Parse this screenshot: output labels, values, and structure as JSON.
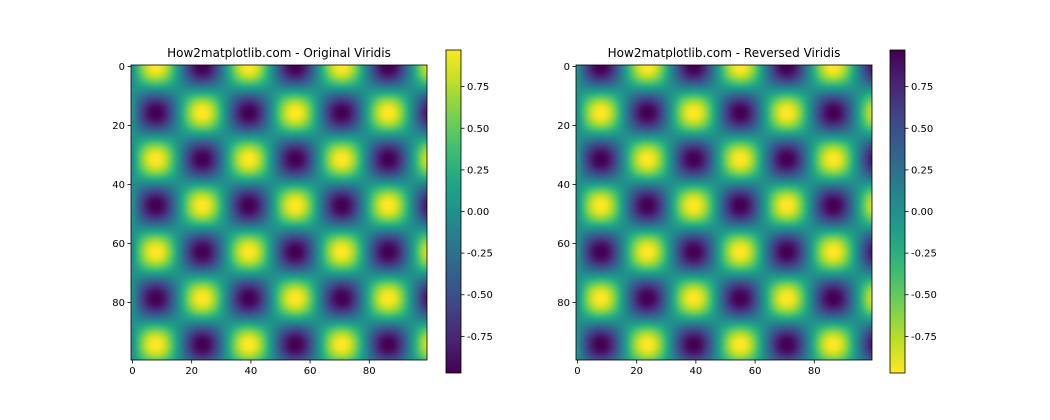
{
  "chart_data": [
    {
      "type": "heatmap",
      "title": "How2matplotlib.com - Original Viridis",
      "function": "sin(x/5)*cos(y/5)",
      "grid_shape": [
        100,
        100
      ],
      "colormap": "viridis",
      "xlim": [
        0,
        99
      ],
      "ylim": [
        99,
        0
      ],
      "xticks": [
        0,
        20,
        40,
        60,
        80
      ],
      "yticks": [
        0,
        20,
        40,
        60,
        80
      ],
      "colorbar": {
        "range": [
          -0.97,
          0.97
        ],
        "ticks": [
          0.75,
          0.5,
          0.25,
          0.0,
          -0.25,
          -0.5,
          -0.75
        ],
        "tick_labels": [
          "0.75",
          "0.50",
          "0.25",
          "0.00",
          "-0.25",
          "-0.50",
          "-0.75"
        ]
      },
      "grid": false
    },
    {
      "type": "heatmap",
      "title": "How2matplotlib.com - Reversed Viridis",
      "function": "sin(x/5)*cos(y/5)",
      "grid_shape": [
        100,
        100
      ],
      "colormap": "viridis_r",
      "xlim": [
        0,
        99
      ],
      "ylim": [
        99,
        0
      ],
      "xticks": [
        0,
        20,
        40,
        60,
        80
      ],
      "yticks": [
        0,
        20,
        40,
        60,
        80
      ],
      "colorbar": {
        "range": [
          -0.97,
          0.97
        ],
        "ticks": [
          0.75,
          0.5,
          0.25,
          0.0,
          -0.25,
          -0.5,
          -0.75
        ],
        "tick_labels": [
          "0.75",
          "0.50",
          "0.25",
          "0.00",
          "-0.25",
          "-0.50",
          "-0.75"
        ]
      },
      "grid": false
    }
  ]
}
